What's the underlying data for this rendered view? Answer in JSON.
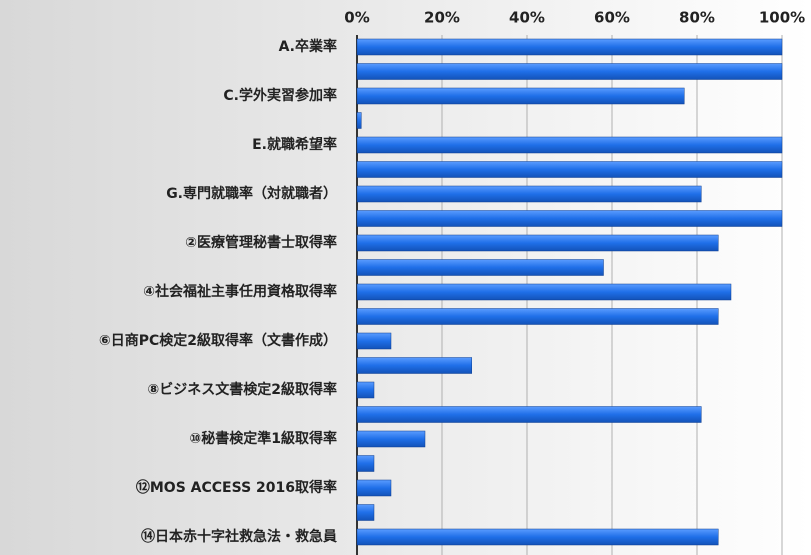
{
  "chart_data": {
    "type": "barh",
    "categories": [
      "A.卒業率",
      null,
      "C.学外実習参加率",
      null,
      "E.就職希望率",
      null,
      "G.専門就職率（対就職者）",
      null,
      "②医療管理秘書士取得率",
      null,
      "④社会福祉主事任用資格取得率",
      null,
      "⑥日商PC検定2級取得率（文書作成）",
      null,
      "⑧ビジネス文書検定2級取得率",
      null,
      "⑩秘書検定準1級取得率",
      null,
      "⑫MOS ACCESS 2016取得率",
      null,
      "⑭日本赤十字社救急法・救急員"
    ],
    "values": [
      100,
      100,
      77,
      1,
      100,
      100,
      81,
      100,
      85,
      58,
      88,
      85,
      8,
      27,
      4,
      81,
      16,
      4,
      8,
      4,
      85
    ],
    "color": "#1f6fe8",
    "xlim": [
      0,
      100
    ],
    "xticks": [
      {
        "value": 0,
        "label": "0%"
      },
      {
        "value": 20,
        "label": "20%"
      },
      {
        "value": 40,
        "label": "40%"
      },
      {
        "value": 60,
        "label": "60%"
      },
      {
        "value": 80,
        "label": "80%"
      },
      {
        "value": 100,
        "label": "100%"
      }
    ],
    "grid": true
  }
}
